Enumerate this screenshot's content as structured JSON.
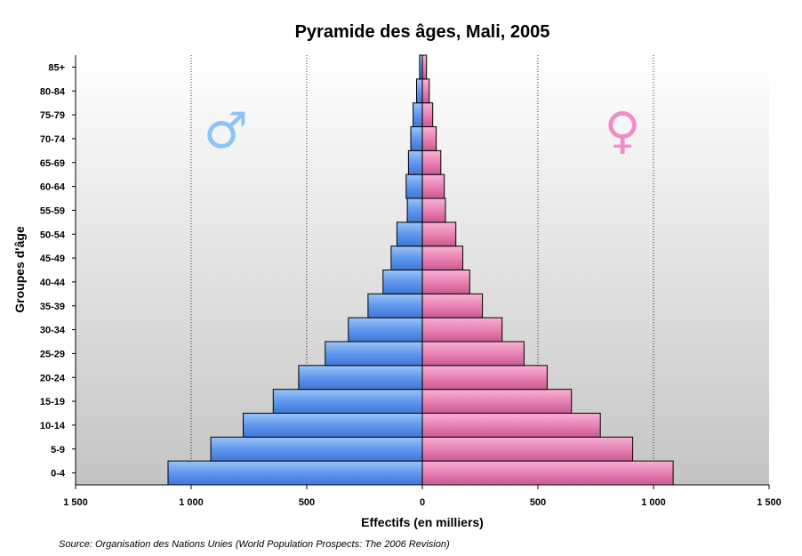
{
  "chart_data": {
    "type": "bar",
    "orientation": "horizontal",
    "title": "Pyramide des âges, Mali, 2005",
    "xlabel": "Effectifs (en milliers)",
    "ylabel": "Groupes d'âge",
    "source": "Source: Organisation des Nations Unies (World Population Prospects: The 2006 Revision)",
    "categories": [
      "0-4",
      "5-9",
      "10-14",
      "15-19",
      "20-24",
      "25-29",
      "30-34",
      "35-39",
      "40-44",
      "45-49",
      "50-54",
      "55-59",
      "60-64",
      "65-69",
      "70-74",
      "75-79",
      "80-84",
      "85+"
    ],
    "series": [
      {
        "name": "♂",
        "color": "#6fa4f0",
        "values": [
          1100,
          915,
          775,
          645,
          535,
          420,
          320,
          235,
          170,
          135,
          110,
          65,
          70,
          60,
          50,
          40,
          25,
          12
        ]
      },
      {
        "name": "♀",
        "color": "#ec87b8",
        "values": [
          1085,
          910,
          770,
          645,
          540,
          440,
          345,
          260,
          205,
          175,
          145,
          100,
          95,
          80,
          60,
          45,
          30,
          18
        ]
      }
    ],
    "xlim": [
      -1500,
      1500
    ],
    "xticks": [
      -1500,
      -1000,
      -500,
      0,
      500,
      1000,
      1500
    ],
    "xtick_labels": [
      "1 500",
      "1 000",
      "500",
      "0",
      "500",
      "1 000",
      "1 500"
    ],
    "grid": "vertical dotted",
    "background": "gradient white to grey"
  },
  "symbols": {
    "male": "♂",
    "male_icon": "male-symbol-icon",
    "male_color": "#8ec3f5",
    "female": "♀",
    "female_icon": "female-symbol-icon",
    "female_color": "#f08dc4"
  }
}
